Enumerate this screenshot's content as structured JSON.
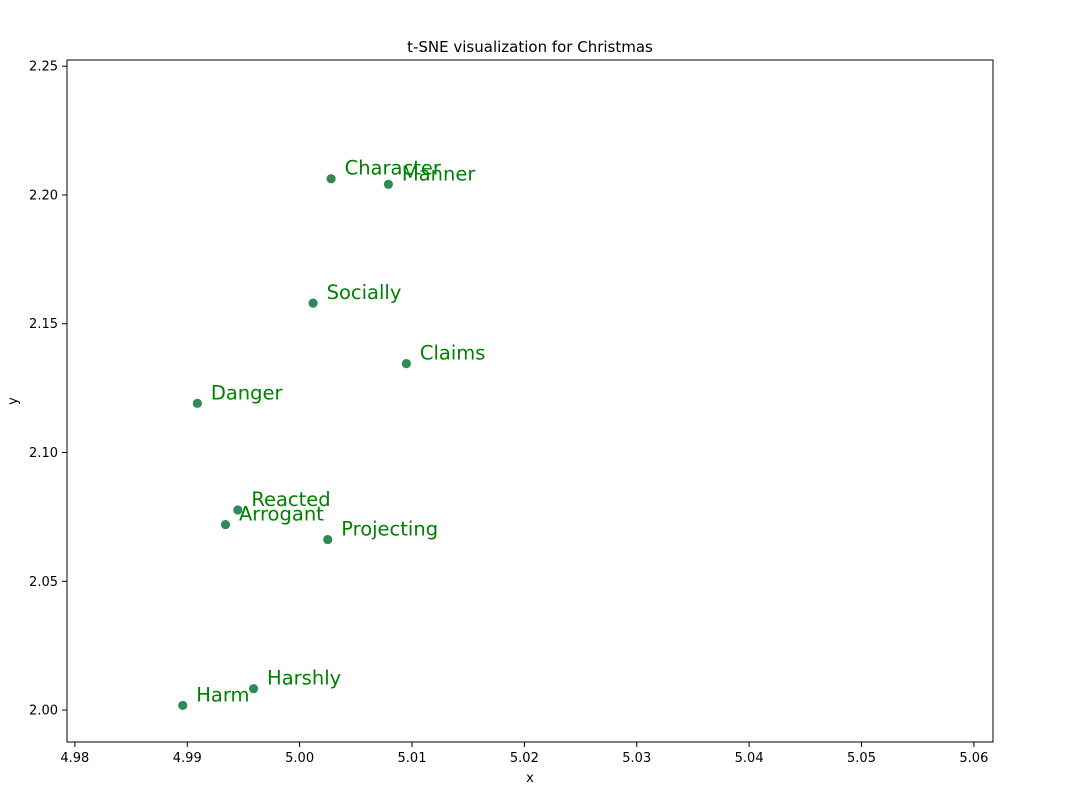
{
  "chart_data": {
    "type": "scatter",
    "title": "t-SNE visualization for Christmas",
    "xlabel": "x",
    "ylabel": "y",
    "xlim": [
      4.9793,
      5.0617
    ],
    "ylim": [
      1.9876,
      2.2524
    ],
    "xticks": [
      "4.98",
      "4.99",
      "5.00",
      "5.01",
      "5.02",
      "5.03",
      "5.04",
      "5.05",
      "5.06"
    ],
    "yticks": [
      "2.00",
      "2.05",
      "2.10",
      "2.15",
      "2.20",
      "2.25"
    ],
    "grid": false,
    "legend": "none",
    "point_color": "#2e8b57",
    "label_color": "#008000",
    "points": [
      {
        "label": "Character",
        "x": 5.0028,
        "y": 2.2063
      },
      {
        "label": "Manner",
        "x": 5.0079,
        "y": 2.2041
      },
      {
        "label": "Socially",
        "x": 5.0012,
        "y": 2.158
      },
      {
        "label": "Claims",
        "x": 5.0095,
        "y": 2.1345
      },
      {
        "label": "Danger",
        "x": 4.9909,
        "y": 2.1191
      },
      {
        "label": "Reacted",
        "x": 4.9945,
        "y": 2.0777
      },
      {
        "label": "Arrogant",
        "x": 4.9934,
        "y": 2.072
      },
      {
        "label": "Projecting",
        "x": 5.0025,
        "y": 2.0662
      },
      {
        "label": "Harshly",
        "x": 4.9959,
        "y": 2.0083
      },
      {
        "label": "Harm",
        "x": 4.9896,
        "y": 2.0018
      }
    ]
  }
}
